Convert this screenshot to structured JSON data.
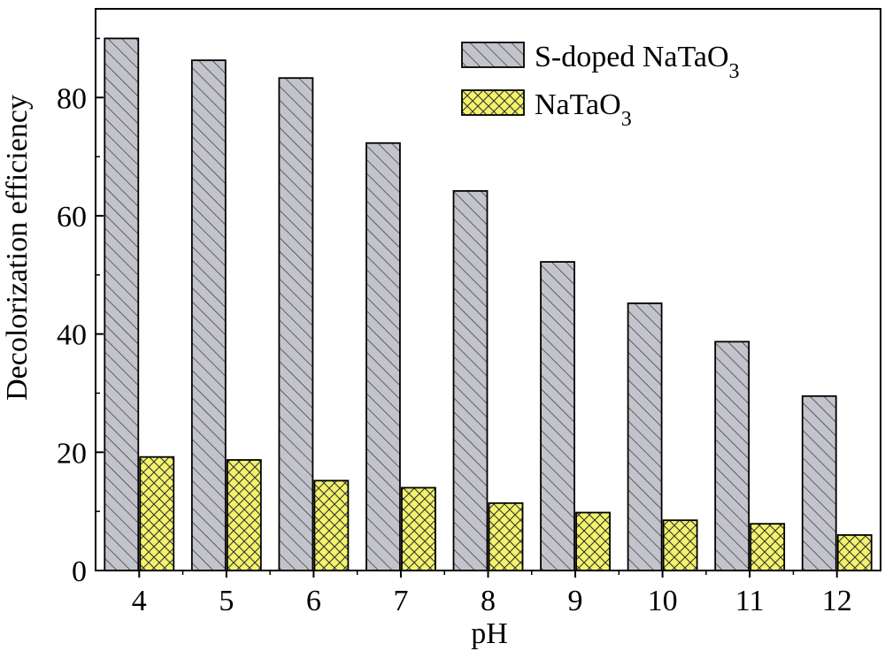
{
  "chart_data": {
    "type": "bar",
    "xlabel": "pH",
    "ylabel": "Decolorization efficiency",
    "categories": [
      "4",
      "5",
      "6",
      "7",
      "8",
      "9",
      "10",
      "11",
      "12"
    ],
    "ylim": [
      0,
      95
    ],
    "yticks": [
      0,
      20,
      40,
      60,
      80
    ],
    "grid": false,
    "legend_position": "top-right",
    "series": [
      {
        "name": "S-doped NaTaO",
        "name_subscript": "3",
        "values": [
          90,
          86.3,
          83.3,
          72.3,
          64.2,
          52.2,
          45.2,
          38.7,
          29.5
        ],
        "color": "#c3c3cc",
        "pattern": "diagonal-hatch"
      },
      {
        "name": "NaTaO",
        "name_subscript": "3",
        "values": [
          19.2,
          18.7,
          15.2,
          14,
          11.4,
          9.8,
          8.5,
          7.9,
          6.0
        ],
        "color": "#f3f36c",
        "pattern": "cross-hatch"
      }
    ]
  }
}
